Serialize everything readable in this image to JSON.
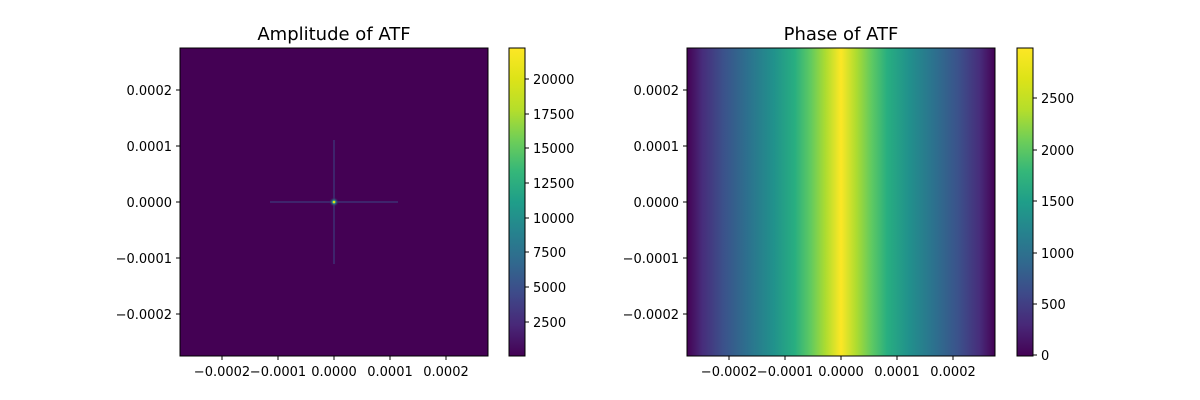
{
  "chart_data": [
    {
      "type": "heatmap",
      "title": "Amplitude of ATF",
      "colormap": "viridis",
      "x_ticks": [
        "−0.0002",
        "−0.0001",
        "0.0000",
        "0.0001",
        "0.0002"
      ],
      "x_tick_values": [
        -0.0002,
        -0.0001,
        0.0,
        0.0001,
        0.0002
      ],
      "y_ticks": [
        "0.0002",
        "0.0001",
        "0.0000",
        "−0.0001",
        "−0.0002"
      ],
      "y_tick_values": [
        0.0002,
        0.0001,
        0.0,
        -0.0001,
        -0.0002
      ],
      "xlim": [
        -0.000275,
        0.000275
      ],
      "ylim": [
        -0.000275,
        0.000275
      ],
      "colorbar": {
        "range": [
          0,
          22300
        ],
        "ticks": [
          "2500",
          "5000",
          "7500",
          "10000",
          "12500",
          "15000",
          "17500",
          "20000"
        ],
        "tick_values": [
          2500,
          5000,
          7500,
          10000,
          12500,
          15000,
          17500,
          20000
        ]
      },
      "pattern": {
        "kind": "central-peak",
        "peak_value": 22300,
        "background_value": 0,
        "center": [
          0.0,
          0.0
        ]
      }
    },
    {
      "type": "heatmap",
      "title": "Phase of ATF",
      "colormap": "viridis",
      "x_ticks": [
        "−0.0002",
        "−0.0001",
        "0.0000",
        "0.0001",
        "0.0002"
      ],
      "x_tick_values": [
        -0.0002,
        -0.0001,
        0.0,
        0.0001,
        0.0002
      ],
      "y_ticks": [
        "0.0002",
        "0.0001",
        "0.0000",
        "−0.0001",
        "−0.0002"
      ],
      "y_tick_values": [
        0.0002,
        0.0001,
        0.0,
        -0.0001,
        -0.0002
      ],
      "xlim": [
        -0.000275,
        0.000275
      ],
      "ylim": [
        -0.000275,
        0.000275
      ],
      "colorbar": {
        "range": [
          0,
          2980
        ],
        "ticks": [
          "0",
          "500",
          "1000",
          "1500",
          "2000",
          "2500"
        ],
        "tick_values": [
          0,
          500,
          1000,
          1500,
          2000,
          2500
        ]
      },
      "pattern": {
        "kind": "vertical-bands",
        "max_value": 2980,
        "min_value": 0,
        "profile": "quadratic",
        "center_x": 0.0
      }
    }
  ]
}
